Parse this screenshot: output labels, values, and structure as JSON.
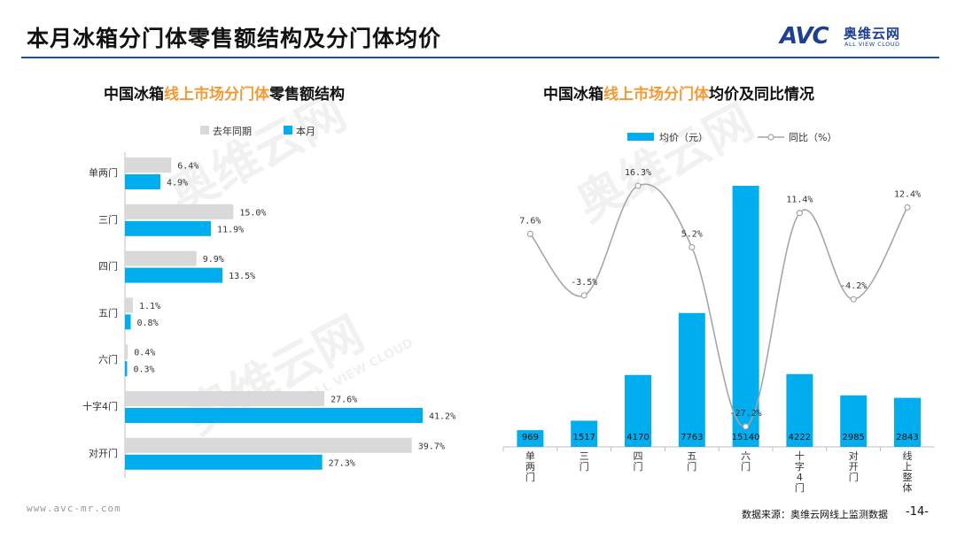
{
  "page": {
    "title": "本月冰箱分门体零售额结构及分门体均价",
    "logo_text": "AVC",
    "logo_cn": "奥维云网",
    "logo_en": "ALL VIEW CLOUD",
    "watermark_cn": "奥维云网",
    "watermark_en": "ALL VIEW CLOUD",
    "footer_url": "www.avc-mr.com",
    "footer_source": "数据来源：奥维云网线上监测数据",
    "page_number": "-14-"
  },
  "colors": {
    "accent_blue": "#00aeef",
    "bar_grey": "#d9d9d9",
    "title_orange": "#f29a36",
    "line_grey": "#a6a6a6",
    "brand_navy": "#1c3f94"
  },
  "chart_data": [
    {
      "type": "bar",
      "orientation": "horizontal",
      "title_prefix": "中国冰箱",
      "title_highlight": "线上市场分门体",
      "title_suffix": "零售额结构",
      "categories": [
        "单两门",
        "三门",
        "四门",
        "五门",
        "六门",
        "十字4门",
        "对开门"
      ],
      "series": [
        {
          "name": "去年同期",
          "values": [
            6.4,
            15.0,
            9.9,
            1.1,
            0.4,
            27.6,
            39.7
          ],
          "labels": [
            "6.4%",
            "15.0%",
            "9.9%",
            "1.1%",
            "0.4%",
            "27.6%",
            "39.7%"
          ]
        },
        {
          "name": "本月",
          "values": [
            4.9,
            11.9,
            13.5,
            0.8,
            0.3,
            41.2,
            27.3
          ],
          "labels": [
            "4.9%",
            "11.9%",
            "13.5%",
            "0.8%",
            "0.3%",
            "41.2%",
            "27.3%"
          ]
        }
      ],
      "xlim": [
        0,
        45
      ]
    },
    {
      "type": "bar+line",
      "title_prefix": "中国冰箱",
      "title_highlight": "线上市场分门体",
      "title_suffix": "均价及同比情况",
      "categories": [
        "单两门",
        "三门",
        "四门",
        "五门",
        "六门",
        "十字4门",
        "对开门",
        "线上整体"
      ],
      "bar_series": {
        "name": "均价（元）",
        "values": [
          969,
          1517,
          4170,
          7763,
          15140,
          4222,
          2985,
          2843
        ]
      },
      "line_series": {
        "name": "同比（%）",
        "values": [
          7.6,
          -3.5,
          16.3,
          5.2,
          -27.2,
          11.4,
          -4.2,
          12.4
        ],
        "labels": [
          "7.6%",
          "-3.5%",
          "16.3%",
          "5.2%",
          "-27.2%",
          "11.4%",
          "-4.2%",
          "12.4%"
        ]
      },
      "ylim_bar": [
        0,
        16500
      ],
      "ylim_line": [
        -30,
        20
      ]
    }
  ]
}
